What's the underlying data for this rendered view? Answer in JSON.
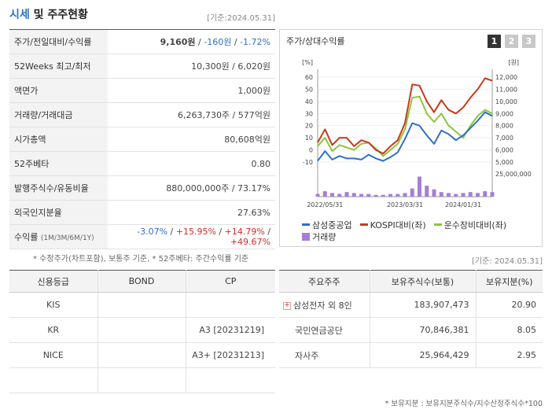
{
  "header": {
    "title_accent": "시세",
    "title_rest": "및 주주현황",
    "asof": "[기준:2024.05.31]"
  },
  "info": {
    "rows": [
      {
        "label": "주가/전일대비/수익률"
      },
      {
        "label": "52Weeks 최고/최저",
        "value": "10,300원 / 6,020원"
      },
      {
        "label": "액면가",
        "value": "1,000원"
      },
      {
        "label": "거래량/거래대금",
        "value": "6,263,730주 / 577억원"
      },
      {
        "label": "시가총액",
        "value": "80,608억원"
      },
      {
        "label": "52주베타",
        "value": "0.80"
      },
      {
        "label": "발행주식수/유동비율",
        "value": "880,000,000주 / 73.17%"
      },
      {
        "label": "외국인지분율",
        "value": "27.63%"
      },
      {
        "label": "수익률",
        "sub": "(1M/3M/6M/1Y)"
      }
    ],
    "price": "9,160원",
    "sep1": "/",
    "change": "-160원",
    "sep2": "/",
    "rate": "-1.72%",
    "returns": [
      "-3.07%",
      "+15.95%",
      "+14.79%",
      "+49.67%"
    ],
    "note": "* 수정주가(차트포함), 보통주 기준, * 52주베타: 주간수익률 기준"
  },
  "chart_panel": {
    "title": "주가/상대수익률",
    "tabs": [
      "1",
      "2",
      "3"
    ],
    "legend": {
      "stock": "삼성중공업",
      "kospi": "KOSPI대비(좌)",
      "sector": "운수장비대비(좌)",
      "volume": "거래량"
    },
    "volume_axis_label": "25,000,000"
  },
  "asof2": "[기준: 2024.05.31]",
  "credit": {
    "headers": [
      "신용등급",
      "BOND",
      "CP"
    ],
    "rows": [
      {
        "agency": "KIS",
        "bond": "",
        "cp": ""
      },
      {
        "agency": "KR",
        "bond": "",
        "cp": "A3 [20231219]"
      },
      {
        "agency": "NICE",
        "bond": "",
        "cp": "A3+ [20231213]"
      },
      {
        "agency": "",
        "bond": "",
        "cp": ""
      }
    ]
  },
  "holders": {
    "headers": [
      "주요주주",
      "보유주식수(보통)",
      "보유지분(%)"
    ],
    "rows": [
      {
        "name": "삼성전자 외 8인",
        "shares": "183,907,473",
        "pct": "20.90",
        "expand": "+"
      },
      {
        "name": "국민연금공단",
        "shares": "70,846,381",
        "pct": "8.05"
      },
      {
        "name": "자사주",
        "shares": "25,964,429",
        "pct": "2.95"
      }
    ],
    "note": "* 보유지분 : 보유지분주식수/지수산정주식수*100"
  },
  "colors": {
    "stock": "#2e6fc9",
    "kospi": "#c8391a",
    "sector": "#8cc63e",
    "volume": "#a47fd6"
  },
  "chart_data": {
    "type": "line",
    "x_tick_labels": [
      "2022/05/31",
      "2023/03/31",
      "2024/01/31"
    ],
    "left_axis": {
      "unit": "[%]",
      "ticks": [
        "60",
        "50",
        "40",
        "30",
        "20",
        "10",
        "0",
        "-10"
      ],
      "ylim": [
        -10,
        60
      ]
    },
    "right_axis": {
      "unit": "[원]",
      "ticks": [
        "12,000",
        "11,000",
        "10,000",
        "9,000",
        "8,000",
        "7,000",
        "6,000",
        "5,000"
      ],
      "ylim": [
        5000,
        12000
      ]
    },
    "x": [
      0,
      1,
      2,
      3,
      4,
      5,
      6,
      7,
      8,
      9,
      10,
      11,
      12,
      13,
      14,
      15,
      16,
      17,
      18,
      19,
      20,
      21,
      22,
      23,
      24
    ],
    "series": [
      {
        "name": "삼성중공업",
        "axis": "right",
        "values": [
          5100,
          5900,
          5200,
          5500,
          5300,
          5300,
          5200,
          5600,
          5300,
          5100,
          5400,
          5800,
          6900,
          8200,
          8000,
          7200,
          6500,
          7600,
          7300,
          6800,
          7200,
          7800,
          8400,
          9100,
          8800
        ]
      },
      {
        "name": "KOSPI대비(좌)",
        "axis": "left",
        "values": [
          6,
          17,
          4,
          10,
          10,
          3,
          8,
          6,
          0,
          -3,
          3,
          8,
          22,
          54,
          53,
          40,
          31,
          41,
          33,
          30,
          35,
          43,
          50,
          59,
          57
        ]
      },
      {
        "name": "운수장비대비(좌)",
        "axis": "left",
        "values": [
          3,
          10,
          -1,
          4,
          2,
          0,
          5,
          6,
          1,
          -5,
          0,
          5,
          17,
          43,
          44,
          30,
          23,
          30,
          20,
          15,
          10,
          20,
          28,
          33,
          30
        ]
      },
      {
        "name": "거래량",
        "axis": "volume",
        "values": [
          3,
          6,
          4,
          3,
          5,
          4,
          3,
          3,
          2,
          2,
          3,
          3,
          4,
          9,
          22,
          12,
          8,
          5,
          4,
          3,
          4,
          5,
          4,
          6,
          5
        ]
      }
    ],
    "volume_scale_max": 25
  }
}
